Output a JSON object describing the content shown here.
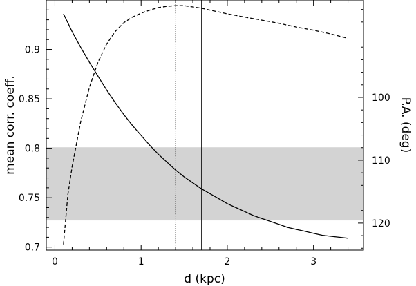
{
  "chart_data": {
    "type": "line",
    "title": "",
    "xlabel": "d (kpc)",
    "ylabel": "mean corr. coeff.",
    "y2label": "P.A. (deg)",
    "xlim": [
      -0.1,
      3.58
    ],
    "ylim": [
      0.697,
      0.95
    ],
    "y2lim": [
      84.5,
      124.3
    ],
    "y2_inverted": true,
    "x_ticks": [
      0,
      1,
      2,
      3
    ],
    "y_ticks": [
      0.7,
      0.75,
      0.8,
      0.85,
      0.9
    ],
    "y2_ticks": [
      100,
      110,
      120
    ],
    "grid": false,
    "shaded_band": {
      "axis": "y",
      "from": 0.727,
      "to": 0.801,
      "color": "#d3d3d3"
    },
    "vertical_lines": [
      {
        "x": 1.4,
        "style": "dotted"
      },
      {
        "x": 1.7,
        "style": "solid"
      }
    ],
    "series": [
      {
        "axis": "left",
        "style": "solid",
        "x": [
          0.1,
          0.2,
          0.3,
          0.4,
          0.5,
          0.6,
          0.7,
          0.8,
          0.9,
          1.0,
          1.1,
          1.2,
          1.3,
          1.4,
          1.5,
          1.6,
          1.7,
          1.8,
          1.9,
          2.0,
          2.1,
          2.2,
          2.3,
          2.4,
          2.5,
          2.6,
          2.7,
          2.8,
          2.9,
          3.0,
          3.1,
          3.2,
          3.3,
          3.4
        ],
        "y": [
          0.936,
          0.918,
          0.902,
          0.887,
          0.873,
          0.859,
          0.846,
          0.834,
          0.823,
          0.813,
          0.803,
          0.794,
          0.786,
          0.778,
          0.771,
          0.765,
          0.759,
          0.754,
          0.749,
          0.744,
          0.74,
          0.736,
          0.732,
          0.729,
          0.726,
          0.723,
          0.72,
          0.718,
          0.716,
          0.714,
          0.712,
          0.711,
          0.71,
          0.709
        ]
      },
      {
        "axis": "right",
        "style": "dashed",
        "x": [
          0.1,
          0.15,
          0.2,
          0.3,
          0.4,
          0.5,
          0.6,
          0.7,
          0.8,
          0.9,
          1.0,
          1.1,
          1.2,
          1.3,
          1.4,
          1.5,
          1.6,
          1.7,
          1.8,
          1.9,
          2.0,
          2.2,
          2.4,
          2.6,
          2.8,
          3.0,
          3.2,
          3.4
        ],
        "y": [
          123.4,
          115.5,
          111.0,
          103.8,
          98.4,
          94.4,
          91.5,
          89.5,
          88.1,
          87.2,
          86.6,
          86.1,
          85.7,
          85.5,
          85.4,
          85.4,
          85.6,
          85.8,
          86.1,
          86.4,
          86.7,
          87.2,
          87.7,
          88.2,
          88.8,
          89.3,
          89.9,
          90.6
        ]
      }
    ]
  }
}
